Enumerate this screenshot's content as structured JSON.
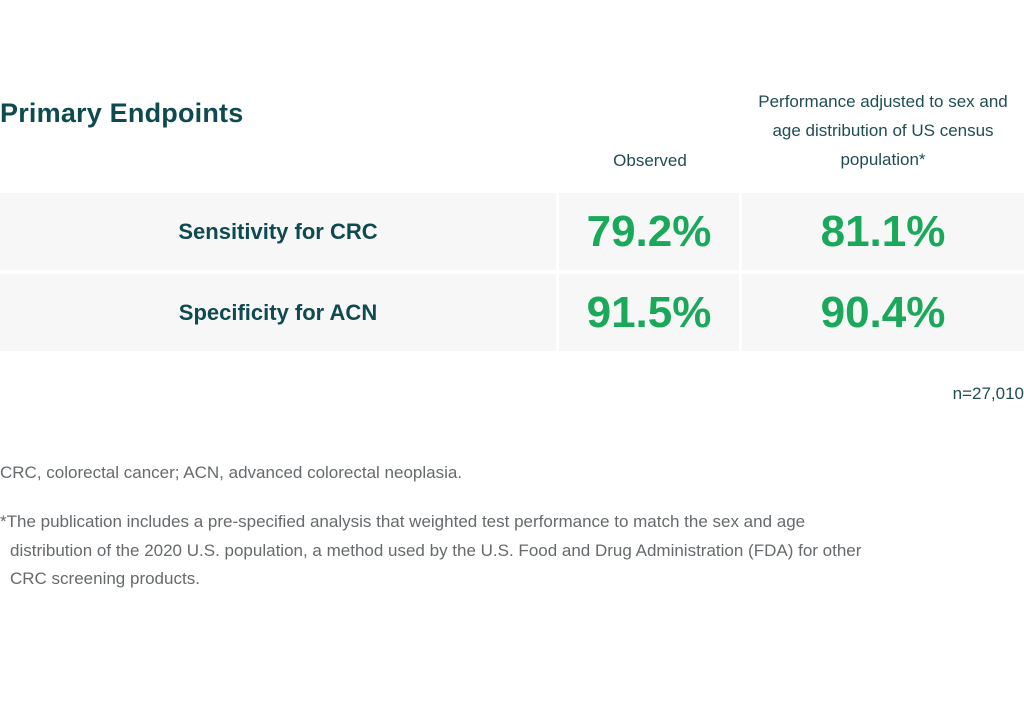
{
  "title": "Primary Endpoints",
  "columns": {
    "observed": "Observed",
    "adjusted": "Performance adjusted to sex and age distribution of US census population*"
  },
  "rows": [
    {
      "label": "Sensitivity for CRC",
      "observed": "79.2%",
      "adjusted": "81.1%"
    },
    {
      "label": "Specificity for ACN",
      "observed": "91.5%",
      "adjusted": "90.4%"
    }
  ],
  "sample_size": "n=27,010",
  "abbreviations": "CRC, colorectal cancer; ACN, advanced colorectal neoplasia.",
  "footnote": "*The publication includes a pre-specified analysis that weighted test performance to match the sex and age distribution of the 2020 U.S. population, a method used by the U.S. Food and Drug Administration (FDA) for other CRC screening products.",
  "colors": {
    "title": "#0f4a50",
    "value": "#1aa85a",
    "row_bg": "#f7f7f7",
    "footnote": "#666a6c"
  }
}
